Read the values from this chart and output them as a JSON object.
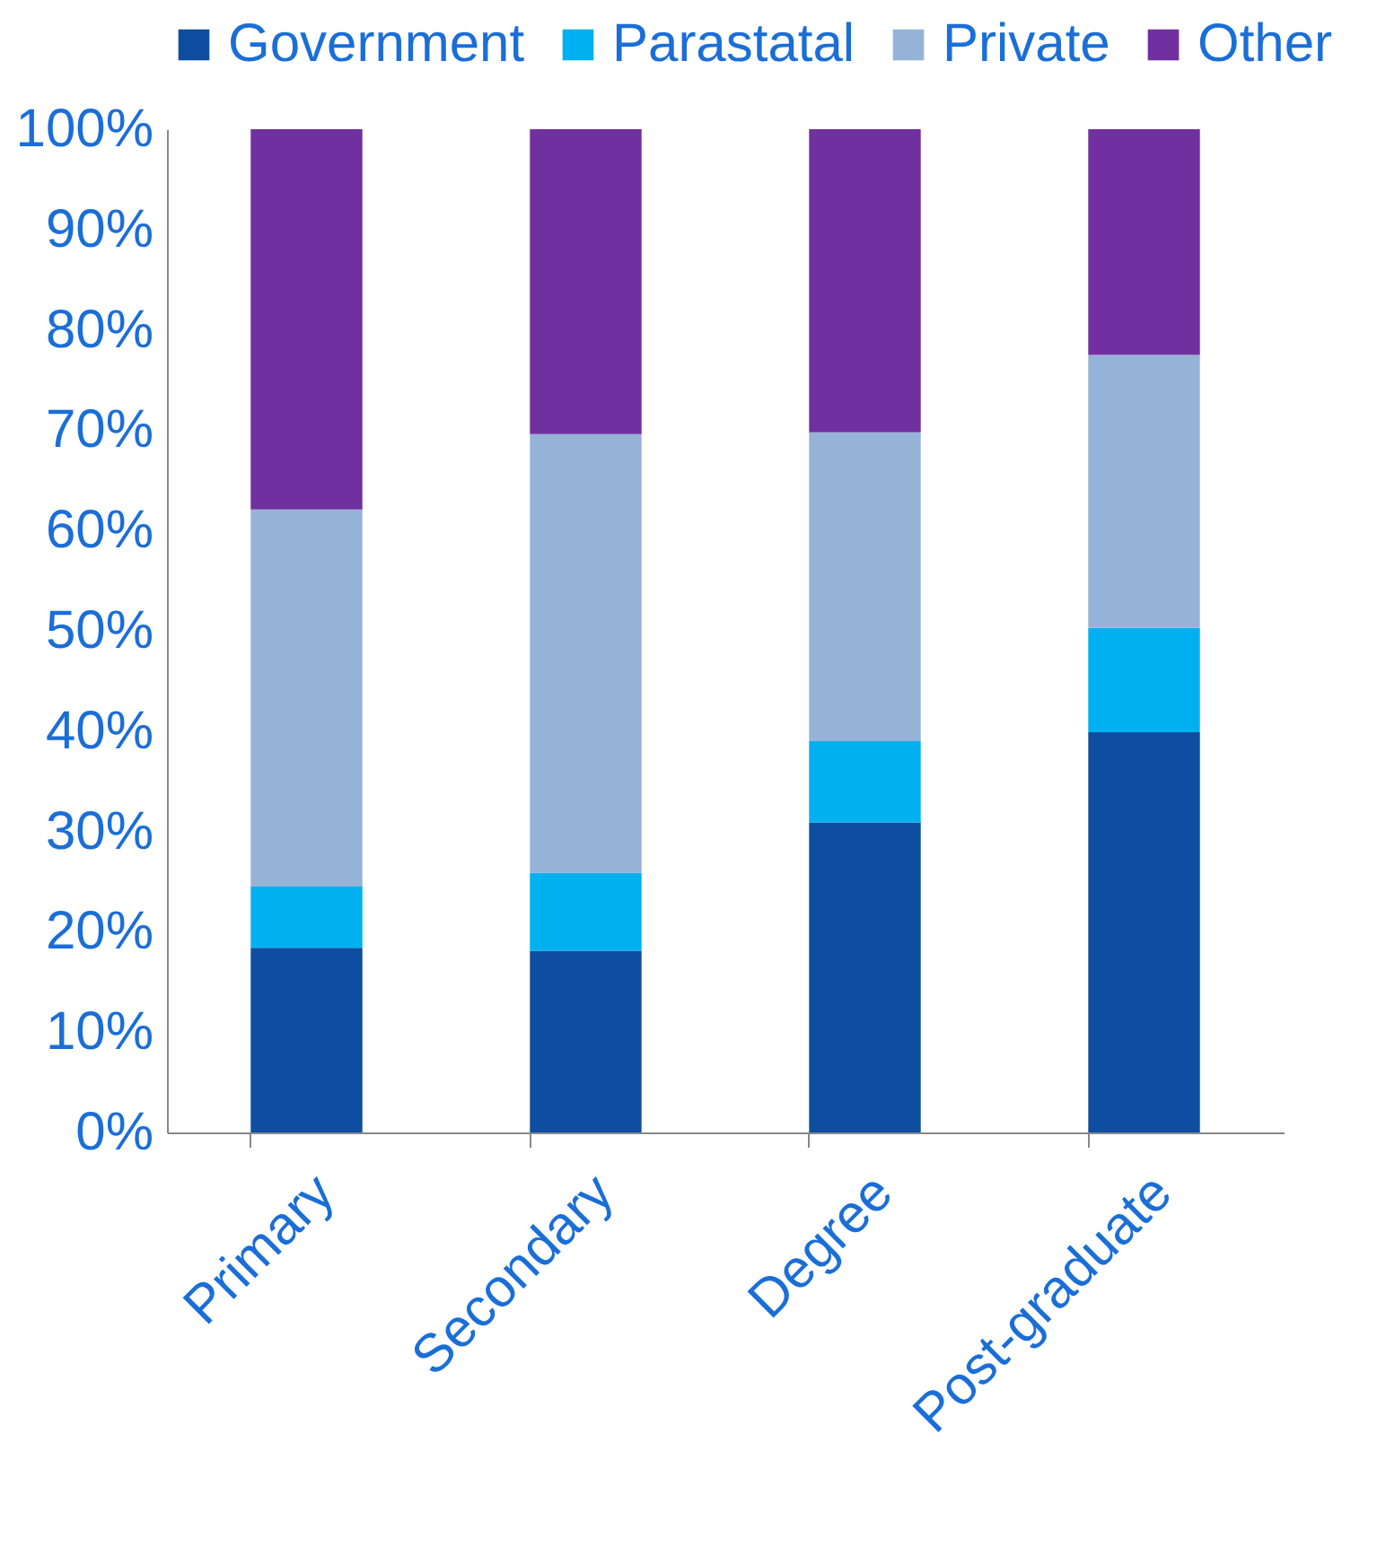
{
  "chart_data": {
    "type": "bar",
    "stacked": true,
    "categories": [
      "Primary",
      "Secondary",
      "Degree",
      "Post-graduate"
    ],
    "series": [
      {
        "name": "Government",
        "color": "#0d4ea0",
        "values": [
          18.4,
          18.1,
          30.9,
          39.9
        ]
      },
      {
        "name": "Parastatal",
        "color": "#00b0f0",
        "values": [
          6.1,
          7.8,
          8.1,
          10.4
        ]
      },
      {
        "name": "Private",
        "color": "#95b3d7",
        "values": [
          37.6,
          43.7,
          30.8,
          27.2
        ]
      },
      {
        "name": "Other",
        "color": "#7030a0",
        "values": [
          37.9,
          30.4,
          30.2,
          22.5
        ]
      }
    ],
    "ylim": [
      0,
      100
    ],
    "yticks": [
      {
        "value": 0,
        "label": "0%"
      },
      {
        "value": 10,
        "label": "10%"
      },
      {
        "value": 20,
        "label": "20%"
      },
      {
        "value": 30,
        "label": "30%"
      },
      {
        "value": 40,
        "label": "40%"
      },
      {
        "value": 50,
        "label": "50%"
      },
      {
        "value": 60,
        "label": "60%"
      },
      {
        "value": 70,
        "label": "70%"
      },
      {
        "value": 80,
        "label": "80%"
      },
      {
        "value": 90,
        "label": "90%"
      },
      {
        "value": 100,
        "label": "100%"
      }
    ],
    "grid": false,
    "legend": "top"
  }
}
